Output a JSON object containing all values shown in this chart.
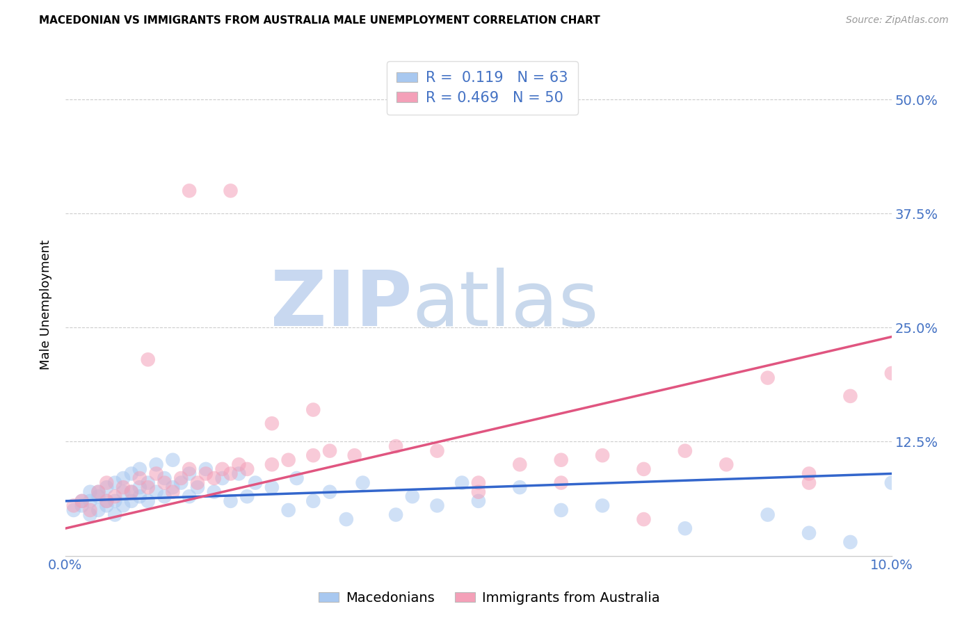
{
  "title": "MACEDONIAN VS IMMIGRANTS FROM AUSTRALIA MALE UNEMPLOYMENT CORRELATION CHART",
  "source": "Source: ZipAtlas.com",
  "ylabel": "Male Unemployment",
  "ytick_labels": [
    "50.0%",
    "37.5%",
    "25.0%",
    "12.5%"
  ],
  "ytick_values": [
    0.5,
    0.375,
    0.25,
    0.125
  ],
  "xlim": [
    0.0,
    0.1
  ],
  "ylim": [
    0.0,
    0.55
  ],
  "blue_color": "#A8C8F0",
  "pink_color": "#F4A0B8",
  "blue_line_color": "#3366CC",
  "pink_line_color": "#E05580",
  "legend_R1": "0.119",
  "legend_N1": "63",
  "legend_R2": "0.469",
  "legend_N2": "50",
  "blue_line_x0": 0.0,
  "blue_line_x1": 0.1,
  "blue_line_y0": 0.06,
  "blue_line_y1": 0.09,
  "pink_line_x0": 0.0,
  "pink_line_x1": 0.1,
  "pink_line_y0": 0.03,
  "pink_line_y1": 0.24,
  "blue_scatter_x": [
    0.001,
    0.002,
    0.002,
    0.003,
    0.003,
    0.003,
    0.004,
    0.004,
    0.004,
    0.005,
    0.005,
    0.005,
    0.006,
    0.006,
    0.006,
    0.007,
    0.007,
    0.007,
    0.008,
    0.008,
    0.008,
    0.009,
    0.009,
    0.009,
    0.01,
    0.01,
    0.011,
    0.011,
    0.012,
    0.012,
    0.013,
    0.013,
    0.014,
    0.015,
    0.015,
    0.016,
    0.017,
    0.018,
    0.019,
    0.02,
    0.021,
    0.022,
    0.023,
    0.025,
    0.027,
    0.028,
    0.03,
    0.032,
    0.034,
    0.036,
    0.04,
    0.042,
    0.045,
    0.048,
    0.05,
    0.055,
    0.06,
    0.065,
    0.075,
    0.085,
    0.09,
    0.095,
    0.1
  ],
  "blue_scatter_y": [
    0.05,
    0.055,
    0.06,
    0.045,
    0.06,
    0.07,
    0.05,
    0.065,
    0.07,
    0.055,
    0.06,
    0.075,
    0.045,
    0.06,
    0.08,
    0.055,
    0.07,
    0.085,
    0.06,
    0.07,
    0.09,
    0.065,
    0.075,
    0.095,
    0.06,
    0.08,
    0.07,
    0.1,
    0.065,
    0.085,
    0.075,
    0.105,
    0.08,
    0.065,
    0.09,
    0.075,
    0.095,
    0.07,
    0.085,
    0.06,
    0.09,
    0.065,
    0.08,
    0.075,
    0.05,
    0.085,
    0.06,
    0.07,
    0.04,
    0.08,
    0.045,
    0.065,
    0.055,
    0.08,
    0.06,
    0.075,
    0.05,
    0.055,
    0.03,
    0.045,
    0.025,
    0.015,
    0.08
  ],
  "pink_scatter_x": [
    0.001,
    0.002,
    0.003,
    0.004,
    0.005,
    0.005,
    0.006,
    0.007,
    0.008,
    0.009,
    0.01,
    0.011,
    0.012,
    0.013,
    0.014,
    0.015,
    0.016,
    0.017,
    0.018,
    0.019,
    0.02,
    0.021,
    0.022,
    0.025,
    0.027,
    0.03,
    0.032,
    0.035,
    0.04,
    0.045,
    0.05,
    0.055,
    0.06,
    0.06,
    0.065,
    0.07,
    0.075,
    0.08,
    0.085,
    0.09,
    0.095,
    0.1,
    0.01,
    0.015,
    0.02,
    0.025,
    0.03,
    0.05,
    0.07,
    0.09
  ],
  "pink_scatter_y": [
    0.055,
    0.06,
    0.05,
    0.07,
    0.06,
    0.08,
    0.065,
    0.075,
    0.07,
    0.085,
    0.075,
    0.09,
    0.08,
    0.07,
    0.085,
    0.095,
    0.08,
    0.09,
    0.085,
    0.095,
    0.09,
    0.1,
    0.095,
    0.1,
    0.105,
    0.11,
    0.115,
    0.11,
    0.12,
    0.115,
    0.08,
    0.1,
    0.08,
    0.105,
    0.11,
    0.095,
    0.115,
    0.1,
    0.195,
    0.08,
    0.175,
    0.2,
    0.215,
    0.4,
    0.4,
    0.145,
    0.16,
    0.07,
    0.04,
    0.09
  ],
  "axis_color": "#4472C4",
  "grid_color": "#CCCCCC",
  "watermark_zip_color": "#C8D8F0",
  "watermark_atlas_color": "#C8D8EC"
}
